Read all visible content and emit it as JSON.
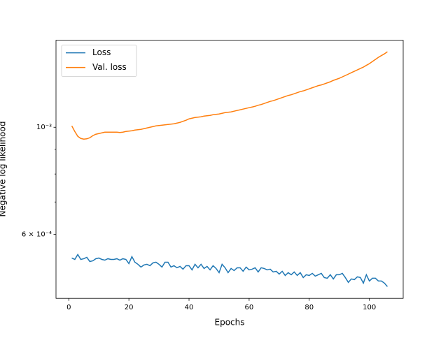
{
  "chart_data": {
    "type": "line",
    "xlabel": "Epochs",
    "ylabel": "Negative log likelihood",
    "x": [
      1,
      2,
      3,
      4,
      5,
      6,
      7,
      8,
      9,
      10,
      11,
      12,
      13,
      14,
      15,
      16,
      17,
      18,
      19,
      20,
      21,
      22,
      23,
      24,
      25,
      26,
      27,
      28,
      29,
      30,
      31,
      32,
      33,
      34,
      35,
      36,
      37,
      38,
      39,
      40,
      41,
      42,
      43,
      44,
      45,
      46,
      47,
      48,
      49,
      50,
      51,
      52,
      53,
      54,
      55,
      56,
      57,
      58,
      59,
      60,
      61,
      62,
      63,
      64,
      65,
      66,
      67,
      68,
      69,
      70,
      71,
      72,
      73,
      74,
      75,
      76,
      77,
      78,
      79,
      80,
      81,
      82,
      83,
      84,
      85,
      86,
      87,
      88,
      89,
      90,
      91,
      92,
      93,
      94,
      95,
      96,
      97,
      98,
      99,
      100,
      101,
      102,
      103,
      104,
      105,
      106
    ],
    "series": [
      {
        "name": "Loss",
        "color": "#1f77b4",
        "values": [
          0.0005358,
          0.0005322,
          0.0005448,
          0.0005322,
          0.000534,
          0.0005376,
          0.0005269,
          0.0005287,
          0.000534,
          0.0005358,
          0.0005322,
          0.0005304,
          0.000534,
          0.0005322,
          0.0005322,
          0.000534,
          0.0005304,
          0.000534,
          0.0005322,
          0.0005217,
          0.0005394,
          0.0005252,
          0.00052,
          0.0005131,
          0.0005182,
          0.00052,
          0.0005165,
          0.0005234,
          0.0005252,
          0.00052,
          0.0005131,
          0.0005252,
          0.0005252,
          0.0005131,
          0.0005165,
          0.0005114,
          0.0005148,
          0.000508,
          0.0005165,
          0.0005165,
          0.0005063,
          0.00052,
          0.0005114,
          0.00052,
          0.0005097,
          0.0005148,
          0.0005063,
          0.0005165,
          0.0005097,
          0.0004996,
          0.00052,
          0.0005114,
          0.0004996,
          0.0005097,
          0.0005046,
          0.0005114,
          0.0005114,
          0.0005029,
          0.0005131,
          0.0005063,
          0.000508,
          0.0005114,
          0.0005013,
          0.0005114,
          0.0005097,
          0.0005063,
          0.000508,
          0.0005013,
          0.0005029,
          0.0004963,
          0.0005029,
          0.000493,
          0.0004996,
          0.0004947,
          0.0005013,
          0.000493,
          0.0004996,
          0.0004881,
          0.0004947,
          0.000493,
          0.000498,
          0.0004914,
          0.0004947,
          0.000498,
          0.0004881,
          0.0004865,
          0.0004947,
          0.0004849,
          0.0004947,
          0.0004947,
          0.000498,
          0.0004881,
          0.0004769,
          0.0004849,
          0.0004833,
          0.0004898,
          0.0004881,
          0.0004753,
          0.0004947,
          0.0004801,
          0.0004865,
          0.0004865,
          0.0004801,
          0.0004801,
          0.0004753,
          0.0004675
        ]
      },
      {
        "name": "Val. loss",
        "color": "#ff7f0e",
        "values": [
          0.0010067,
          0.0009802,
          0.0009576,
          0.000948,
          0.0009448,
          0.0009464,
          0.0009512,
          0.0009608,
          0.0009672,
          0.0009704,
          0.0009737,
          0.0009769,
          0.0009769,
          0.0009769,
          0.0009769,
          0.0009769,
          0.0009753,
          0.0009769,
          0.0009802,
          0.0009818,
          0.0009835,
          0.0009867,
          0.0009884,
          0.00099,
          0.0009934,
          0.0009967,
          0.001,
          0.0010033,
          0.0010067,
          0.0010084,
          0.0010101,
          0.0010118,
          0.0010134,
          0.0010151,
          0.0010168,
          0.0010202,
          0.0010236,
          0.0010288,
          0.0010339,
          0.0010409,
          0.0010443,
          0.0010478,
          0.0010496,
          0.0010513,
          0.0010549,
          0.0010566,
          0.0010584,
          0.0010619,
          0.0010637,
          0.0010655,
          0.001069,
          0.0010726,
          0.0010744,
          0.0010762,
          0.0010798,
          0.0010834,
          0.001087,
          0.0010907,
          0.0010943,
          0.001098,
          0.0011016,
          0.0011053,
          0.0011109,
          0.0011146,
          0.0011202,
          0.0011258,
          0.0011315,
          0.0011352,
          0.0011409,
          0.0011467,
          0.0011524,
          0.0011582,
          0.001164,
          0.0011679,
          0.0011738,
          0.0011797,
          0.0011856,
          0.0011896,
          0.0011955,
          0.0012015,
          0.0012076,
          0.0012136,
          0.0012197,
          0.0012238,
          0.0012299,
          0.0012361,
          0.0012423,
          0.0012507,
          0.0012569,
          0.0012633,
          0.0012717,
          0.0012802,
          0.0012888,
          0.0012975,
          0.0013062,
          0.0013149,
          0.0013237,
          0.0013326,
          0.0013438,
          0.001355,
          0.0013686,
          0.0013824,
          0.0013963,
          0.001408,
          0.0014198,
          0.001434
        ]
      }
    ],
    "xlim": [
      -4.25,
      111.25
    ],
    "xticks": [
      0,
      20,
      40,
      60,
      80,
      100
    ],
    "ylim": [
      0.000442,
      0.001515
    ],
    "yscale": "log",
    "yticks": [
      {
        "value": 0.001,
        "label": "10⁻³"
      },
      {
        "value": 0.0006,
        "label": "6 × 10⁻⁴"
      }
    ],
    "yticks_minor": [
      0.0007,
      0.0008,
      0.0009
    ],
    "legend": "upper left"
  }
}
